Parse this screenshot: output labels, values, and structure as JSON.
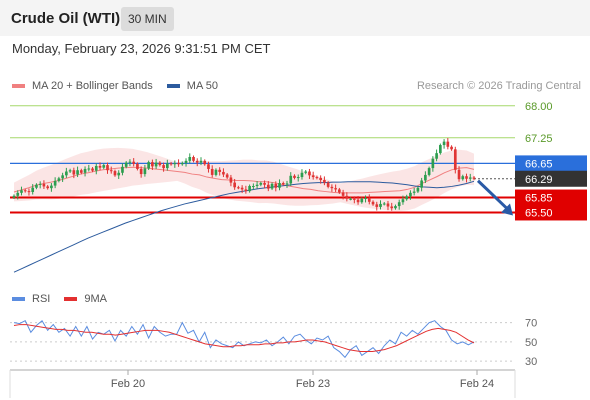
{
  "header": {
    "title": "Crude Oil (WTI)",
    "interval": "30 MIN",
    "datetime": "Monday, February 23, 2026 9:31:51 PM CET",
    "copyright": "Research © 2026 Trading Central"
  },
  "legend": {
    "ma20_label": "MA 20 + Bollinger Bands",
    "ma50_label": "MA 50",
    "rsi_label": "RSI",
    "rsi_ma_label": "9MA"
  },
  "colors": {
    "up": "#2d9e4f",
    "down": "#e03434",
    "ma20": "#f08080",
    "band_fill": "#fadcdc",
    "ma50": "#2c5b9e",
    "green_level": "#a6d86b",
    "blue_level": "#2a6fdb",
    "red_level": "#e00000",
    "rsi": "#5b8de0",
    "rsi_ma": "#e33030",
    "last_price_bg": "#333333",
    "arrow": "#2a5aa6"
  },
  "chart_data": [
    {
      "type": "candlestick",
      "title": "Crude Oil (WTI)",
      "interval": "30 MIN",
      "ylim": [
        63.8,
        68.3
      ],
      "x_ticks": [
        "Feb 20",
        "Feb 23",
        "Feb 24"
      ],
      "levels": [
        {
          "value": 68.0,
          "label": "68.00",
          "kind": "resistance"
        },
        {
          "value": 67.25,
          "label": "67.25",
          "kind": "resistance"
        },
        {
          "value": 66.65,
          "label": "66.65",
          "kind": "pivot"
        },
        {
          "value": 65.85,
          "label": "65.85",
          "kind": "support"
        },
        {
          "value": 65.5,
          "label": "65.50",
          "kind": "support"
        }
      ],
      "last_price": {
        "value": 66.29,
        "label": "66.29"
      },
      "close": [
        65.89,
        65.96,
        66.02,
        66.0,
        65.98,
        66.08,
        66.15,
        66.17,
        66.11,
        66.07,
        66.13,
        66.24,
        66.3,
        66.37,
        66.46,
        66.49,
        66.39,
        66.49,
        66.43,
        66.52,
        66.53,
        66.48,
        66.59,
        66.55,
        66.61,
        66.49,
        66.47,
        66.37,
        66.43,
        66.57,
        66.67,
        66.69,
        66.64,
        66.52,
        66.4,
        66.53,
        66.68,
        66.58,
        66.67,
        66.61,
        66.54,
        66.65,
        66.63,
        66.66,
        66.63,
        66.66,
        66.71,
        66.8,
        66.71,
        66.67,
        66.71,
        66.63,
        66.52,
        66.38,
        66.5,
        66.45,
        66.39,
        66.32,
        66.2,
        66.09,
        66.08,
        66.04,
        66.0,
        66.12,
        66.12,
        66.15,
        66.19,
        66.15,
        66.06,
        66.17,
        66.08,
        66.19,
        66.16,
        66.18,
        66.36,
        66.31,
        66.33,
        66.43,
        66.46,
        66.37,
        66.33,
        66.31,
        66.26,
        66.2,
        66.1,
        66.07,
        66.04,
        65.97,
        65.89,
        65.82,
        65.82,
        65.8,
        65.74,
        65.82,
        65.84,
        65.75,
        65.69,
        65.63,
        65.7,
        65.71,
        65.64,
        65.6,
        65.65,
        65.74,
        65.81,
        65.88,
        65.96,
        65.99,
        66.08,
        66.25,
        66.38,
        66.54,
        66.76,
        66.89,
        67.08,
        67.16,
        67.04,
        66.98,
        66.5,
        66.28,
        66.35,
        66.29,
        66.32,
        66.29
      ],
      "ma20": [
        65.98,
        66.03,
        66.08,
        66.14,
        66.18,
        66.21,
        66.25,
        66.3,
        66.35,
        66.4,
        66.43,
        66.47,
        66.5,
        66.52,
        66.54,
        66.55,
        66.56,
        66.55,
        66.54,
        66.52,
        66.5,
        66.48,
        66.46,
        66.44,
        66.4,
        66.38,
        66.33,
        66.3,
        66.27,
        66.26,
        66.25,
        66.25,
        66.24,
        66.22,
        66.22,
        66.2,
        66.16,
        66.12,
        66.09,
        66.06,
        66.04,
        66.01,
        65.99,
        65.97,
        65.96,
        65.96,
        65.96,
        65.96,
        65.97,
        65.98,
        65.99,
        66.0,
        66.01,
        66.04,
        66.09,
        66.18,
        66.26,
        66.34,
        66.43,
        66.5,
        66.54,
        66.55,
        66.51
      ],
      "ma50": [
        64.1,
        64.18,
        64.26,
        64.34,
        64.42,
        64.5,
        64.58,
        64.66,
        64.74,
        64.82,
        64.9,
        64.97,
        65.04,
        65.11,
        65.18,
        65.25,
        65.31,
        65.37,
        65.43,
        65.49,
        65.55,
        65.6,
        65.65,
        65.7,
        65.74,
        65.78,
        65.82,
        65.86,
        65.9,
        65.94,
        65.97,
        66.0,
        66.03,
        66.06,
        66.08,
        66.1,
        66.12,
        66.14,
        66.16,
        66.18,
        66.19,
        66.2,
        66.2,
        66.21,
        66.21,
        66.22,
        66.22,
        66.22,
        66.22,
        66.21,
        66.2,
        66.19,
        66.17,
        66.15,
        66.12,
        66.1,
        66.09,
        66.08,
        66.09,
        66.11,
        66.14,
        66.18,
        66.23
      ]
    },
    {
      "type": "line",
      "y_ticks": [
        70,
        50,
        30
      ],
      "ylim": [
        25,
        80
      ],
      "series": [
        {
          "name": "RSI",
          "values": [
            70,
            69,
            72,
            60,
            67,
            72,
            62,
            68,
            60,
            64,
            56,
            66,
            56,
            66,
            53,
            60,
            58,
            62,
            51,
            62,
            56,
            66,
            58,
            68,
            54,
            66,
            60,
            56,
            58,
            58,
            70,
            59,
            62,
            50,
            60,
            44,
            52,
            48,
            46,
            44,
            50,
            46,
            48,
            50,
            49,
            52,
            46,
            50,
            55,
            48,
            56,
            58,
            52,
            48,
            54,
            52,
            56,
            44,
            40,
            34,
            42,
            46,
            36,
            40,
            44,
            38,
            46,
            52,
            48,
            60,
            56,
            62,
            58,
            64,
            70,
            72,
            66,
            62,
            52,
            48,
            50,
            47,
            50
          ]
        },
        {
          "name": "9MA",
          "values": [
            67,
            68,
            68,
            67,
            66,
            65,
            64,
            63,
            63,
            62,
            62,
            61,
            60,
            60,
            59,
            58,
            58,
            57,
            58,
            59,
            60,
            61,
            62,
            62,
            62,
            61,
            60,
            58,
            56,
            54,
            52,
            50,
            48,
            47,
            46,
            45,
            45,
            46,
            46,
            47,
            47,
            47,
            48,
            48,
            49,
            49,
            50,
            50,
            51,
            52,
            52,
            51,
            50,
            48,
            46,
            44,
            42,
            41,
            40,
            40,
            40,
            41,
            42,
            44,
            46,
            49,
            52,
            55,
            58,
            61,
            63,
            64,
            63,
            62,
            60,
            56,
            52,
            49
          ]
        }
      ]
    }
  ]
}
